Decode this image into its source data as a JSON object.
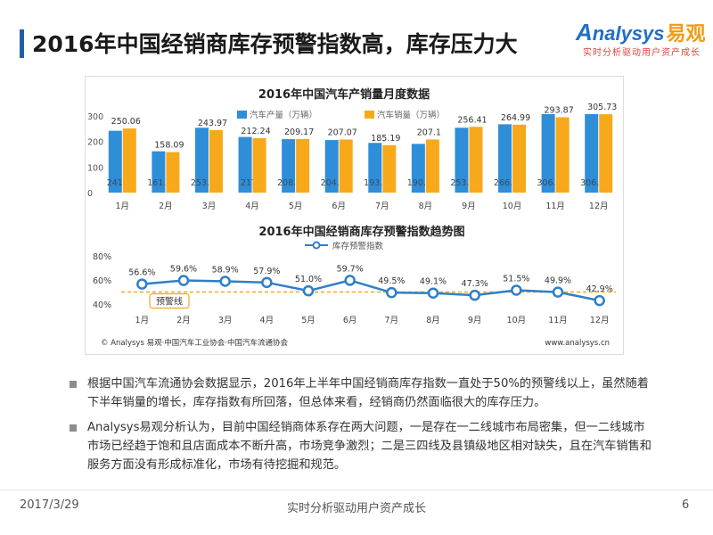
{
  "page": {
    "title": "2016年中国经销商库存预警指数高，库存压力大",
    "logo_text": "nalysys",
    "logo_cn": "易观",
    "logo_slogan": "实时分析驱动用户资产成长"
  },
  "chart_data": [
    {
      "type": "bar",
      "title": "2016年中国汽车产销量月度数据",
      "categories": [
        "1月",
        "2月",
        "3月",
        "4月",
        "5月",
        "6月",
        "7月",
        "8月",
        "9月",
        "10月",
        "11月",
        "12月"
      ],
      "series": [
        {
          "name": "汽车产量（万辆）",
          "color": "#2e8ed8",
          "values": [
            241.2,
            161.18,
            253.06,
            217,
            208.49,
            204.86,
            193.96,
            190.05,
            253.07,
            266.53,
            306.06,
            306.28
          ],
          "labels": [
            "241.2",
            "161.18",
            "253.06",
            "217",
            "208.49",
            "204.86",
            "193.96",
            "190.05",
            "253.07",
            "266.53",
            "306.06",
            "306.28"
          ]
        },
        {
          "name": "汽车销量（万辆）",
          "color": "#f7a81b",
          "values": [
            250.06,
            158.09,
            243.97,
            212.24,
            209.17,
            207.07,
            185.19,
            207.1,
            256.41,
            264.99,
            293.87,
            305.73
          ],
          "labels": [
            "250.06",
            "158.09",
            "243.97",
            "212.24",
            "209.17",
            "207.07",
            "185.19",
            "207.1",
            "256.41",
            "264.99",
            "293.87",
            "305.73"
          ]
        }
      ],
      "yticks": [
        "0",
        "100",
        "200",
        "300"
      ],
      "ylim": [
        0,
        320
      ],
      "legend": "top-right",
      "grid": false
    },
    {
      "type": "line",
      "title": "2016年中国经销商库存预警指数趋势图",
      "categories": [
        "1月",
        "2月",
        "3月",
        "4月",
        "5月",
        "6月",
        "7月",
        "8月",
        "9月",
        "10月",
        "11月",
        "12月"
      ],
      "series": [
        {
          "name": "库存预警指数",
          "color": "#2e7fc8",
          "values": [
            56.6,
            59.6,
            58.9,
            57.9,
            51.0,
            59.7,
            49.5,
            49.1,
            47.3,
            51.5,
            49.9,
            42.9
          ],
          "labels": [
            "56.6%",
            "59.6%",
            "58.9%",
            "57.9%",
            "51.0%",
            "59.7%",
            "49.5%",
            "49.1%",
            "47.3%",
            "51.5%",
            "49.9%",
            "42.9%"
          ]
        }
      ],
      "yticks": [
        "40%",
        "60%",
        "80%"
      ],
      "ylim": [
        40,
        80
      ],
      "threshold": {
        "value": 50,
        "label": "预警线",
        "color": "#f7a81b"
      },
      "legend": "top"
    }
  ],
  "source": {
    "left": "© Analysys 易观·中国汽车工业协会·中国汽车流通协会",
    "right": "www.analysys.cn"
  },
  "bullets": [
    "根据中国汽车流通协会数据显示，2016年上半年中国经销商库存指数一直处于50%的预警线以上，虽然随着下半年销量的增长，库存指数有所回落，但总体来看，经销商仍然面临很大的库存压力。",
    "Analysys易观分析认为，目前中国经销商体系存在两大问题，一是存在一二线城市布局密集，但一二线城市市场已经趋于饱和且店面成本不断升高，市场竞争激烈；二是三四线及县镇级地区相对缺失，且在汽车销售和服务方面没有形成标准化，市场有待挖掘和规范。"
  ],
  "footer": {
    "date": "2017/3/29",
    "slogan": "实时分析驱动用户资产成长",
    "page": "6"
  }
}
